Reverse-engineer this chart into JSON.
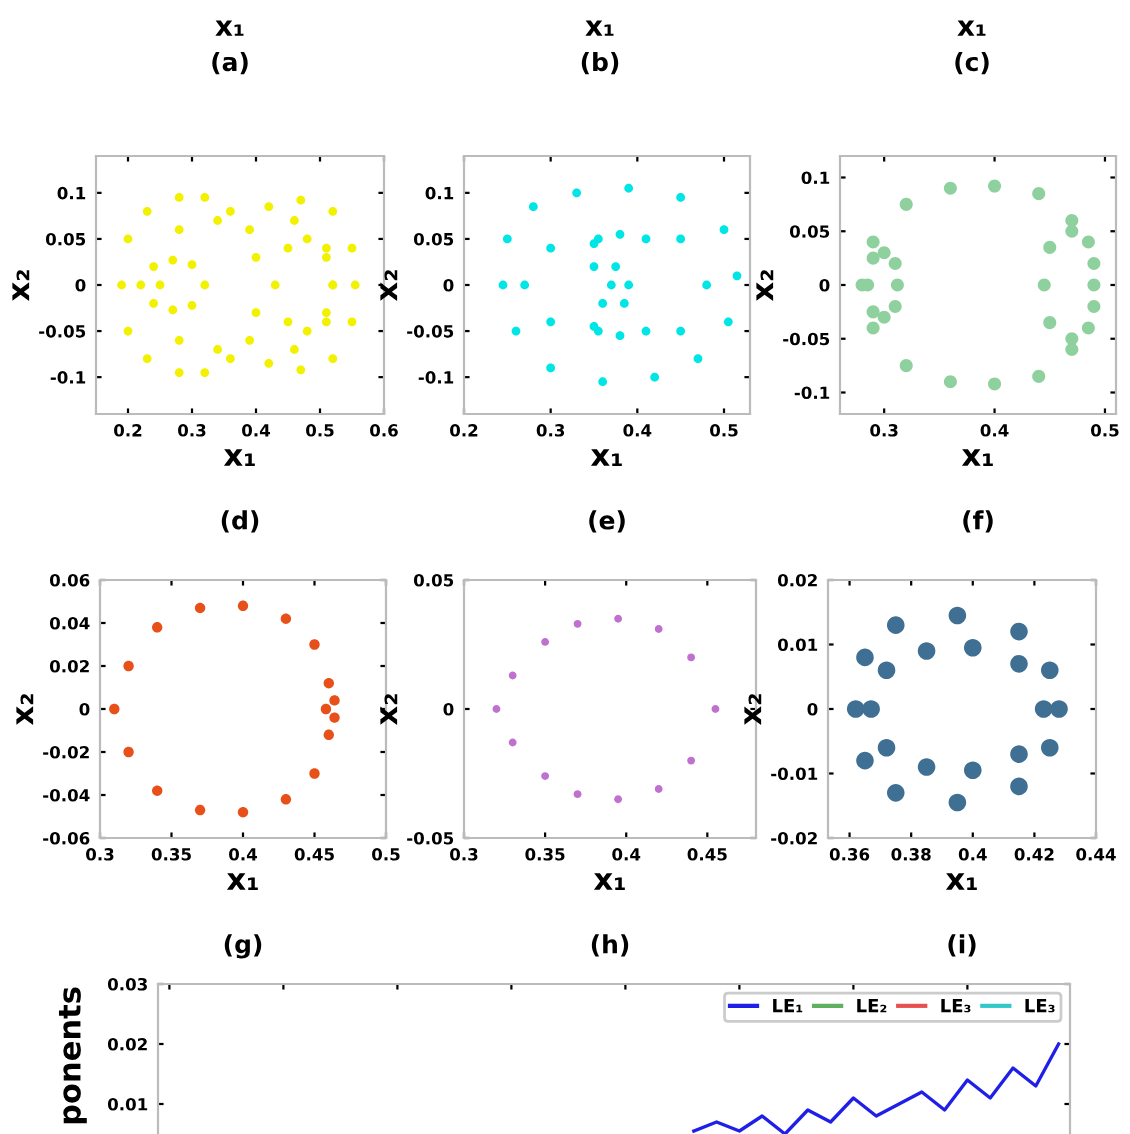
{
  "chart_data": [
    {
      "type": "other",
      "annotations": [
        "x₁",
        "(a)",
        "x₁",
        "(b)",
        "x₁",
        "(c)"
      ]
    },
    {
      "type": "scatter",
      "xlabel": "x₁",
      "ylabel": "x₂",
      "annotations": [
        "(d)"
      ],
      "xlim": [
        0.15,
        0.6
      ],
      "xticks": [
        0.2,
        0.3,
        0.4,
        0.5,
        0.6
      ],
      "ylim": [
        -0.14,
        0.14
      ],
      "yticks": [
        -0.1,
        -0.05,
        0,
        0.05,
        0.1
      ],
      "marker": "circle",
      "grid": false,
      "legend": false,
      "series": [
        {
          "color": "#f2f200",
          "x": [
            0.19,
            0.2,
            0.23,
            0.28,
            0.32,
            0.36,
            0.39,
            0.42,
            0.47,
            0.52,
            0.55,
            0.555,
            0.55,
            0.52,
            0.47,
            0.42,
            0.39,
            0.36,
            0.32,
            0.28,
            0.23,
            0.2
          ],
          "values": [
            0,
            0.05,
            0.08,
            0.095,
            0.095,
            0.08,
            0.06,
            0.085,
            0.092,
            0.08,
            0.04,
            0,
            -0.04,
            -0.08,
            -0.092,
            -0.085,
            -0.06,
            -0.08,
            -0.095,
            -0.095,
            -0.08,
            -0.05
          ]
        },
        {
          "color": "#f2f200",
          "x": [
            0.22,
            0.24,
            0.27,
            0.3,
            0.32,
            0.3,
            0.27,
            0.24
          ],
          "values": [
            0,
            0.02,
            0.027,
            0.022,
            0,
            -0.022,
            -0.027,
            -0.02
          ]
        },
        {
          "color": "#f2f200",
          "x": [
            0.25,
            0.28,
            0.34,
            0.4,
            0.46,
            0.51,
            0.52,
            0.51,
            0.46,
            0.4,
            0.34,
            0.28
          ],
          "values": [
            0,
            0.06,
            0.07,
            0.03,
            0.07,
            0.04,
            0,
            -0.04,
            -0.07,
            -0.03,
            -0.07,
            -0.06
          ]
        },
        {
          "color": "#f2f200",
          "x": [
            0.43,
            0.45,
            0.48,
            0.51,
            0.52,
            0.51,
            0.48,
            0.45
          ],
          "values": [
            0,
            0.04,
            0.05,
            0.03,
            0,
            -0.03,
            -0.05,
            -0.04
          ]
        }
      ]
    },
    {
      "type": "scatter",
      "xlabel": "x₁",
      "ylabel": "x₂",
      "annotations": [
        "(e)"
      ],
      "xlim": [
        0.2,
        0.53
      ],
      "xticks": [
        0.2,
        0.3,
        0.4,
        0.5
      ],
      "ylim": [
        -0.14,
        0.14
      ],
      "yticks": [
        -0.1,
        -0.05,
        0,
        0.05,
        0.1
      ],
      "marker": "circle",
      "grid": false,
      "legend": false,
      "series": [
        {
          "color": "#00e5e5",
          "x": [
            0.245,
            0.25,
            0.28,
            0.33,
            0.39,
            0.45,
            0.5,
            0.515,
            0.505,
            0.47,
            0.42,
            0.36,
            0.3,
            0.26
          ],
          "values": [
            0,
            0.05,
            0.085,
            0.1,
            0.105,
            0.095,
            0.06,
            0.01,
            -0.04,
            -0.08,
            -0.1,
            -0.105,
            -0.09,
            -0.05
          ]
        },
        {
          "color": "#00e5e5",
          "x": [
            0.355,
            0.38,
            0.375,
            0.385,
            0.38,
            0.355,
            0.36,
            0.35
          ],
          "values": [
            0.05,
            0.055,
            0.02,
            -0.02,
            -0.055,
            -0.05,
            -0.02,
            0.02
          ]
        },
        {
          "color": "#00e5e5",
          "x": [
            0.27,
            0.3,
            0.35,
            0.37,
            0.35,
            0.3
          ],
          "values": [
            0,
            0.04,
            0.045,
            0,
            -0.045,
            -0.04
          ]
        },
        {
          "color": "#00e5e5",
          "x": [
            0.39,
            0.41,
            0.45,
            0.48,
            0.45,
            0.41
          ],
          "values": [
            0,
            0.05,
            0.05,
            0,
            -0.05,
            -0.05
          ]
        }
      ]
    },
    {
      "type": "scatter",
      "xlabel": "x₁",
      "ylabel": "x₂",
      "annotations": [
        "(f)"
      ],
      "xlim": [
        0.26,
        0.51
      ],
      "xticks": [
        0.3,
        0.4,
        0.5
      ],
      "ylim": [
        -0.12,
        0.12
      ],
      "yticks": [
        -0.1,
        -0.05,
        0,
        0.05,
        0.1
      ],
      "marker": "circle",
      "grid": false,
      "legend": false,
      "series": [
        {
          "color": "#8fd19e",
          "x": [
            0.28,
            0.29,
            0.32,
            0.36,
            0.4,
            0.44,
            0.47,
            0.49,
            0.49,
            0.47,
            0.44,
            0.4,
            0.36,
            0.32,
            0.29
          ],
          "values": [
            0,
            0.04,
            0.075,
            0.09,
            0.092,
            0.085,
            0.06,
            0.02,
            -0.02,
            -0.06,
            -0.085,
            -0.092,
            -0.09,
            -0.075,
            -0.04
          ]
        },
        {
          "color": "#8fd19e",
          "x": [
            0.285,
            0.29,
            0.3,
            0.31,
            0.312,
            0.31,
            0.3,
            0.29
          ],
          "values": [
            0,
            0.025,
            0.03,
            0.02,
            0,
            -0.02,
            -0.03,
            -0.025
          ]
        },
        {
          "color": "#8fd19e",
          "x": [
            0.445,
            0.45,
            0.47,
            0.485,
            0.49,
            0.485,
            0.47,
            0.45
          ],
          "values": [
            0,
            0.035,
            0.05,
            0.04,
            0,
            -0.04,
            -0.05,
            -0.035
          ]
        }
      ]
    },
    {
      "type": "scatter",
      "xlabel": "x₁",
      "ylabel": "x₂",
      "annotations": [
        "(g)"
      ],
      "xlim": [
        0.3,
        0.5
      ],
      "xticks": [
        0.3,
        0.35,
        0.4,
        0.45,
        0.5
      ],
      "ylim": [
        -0.06,
        0.06
      ],
      "yticks": [
        -0.06,
        -0.04,
        -0.02,
        0,
        0.02,
        0.04,
        0.06
      ],
      "marker": "circle",
      "grid": false,
      "legend": false,
      "series": [
        {
          "color": "#e8501a",
          "x": [
            0.31,
            0.32,
            0.34,
            0.37,
            0.4,
            0.43,
            0.45,
            0.46,
            0.46,
            0.45,
            0.43,
            0.4,
            0.37,
            0.34,
            0.32
          ],
          "values": [
            0,
            0.02,
            0.038,
            0.047,
            0.048,
            0.042,
            0.03,
            0.012,
            -0.012,
            -0.03,
            -0.042,
            -0.048,
            -0.047,
            -0.038,
            -0.02
          ]
        },
        {
          "color": "#e8501a",
          "x": [
            0.458,
            0.464,
            0.464
          ],
          "values": [
            0,
            0.004,
            -0.004
          ]
        }
      ]
    },
    {
      "type": "scatter",
      "xlabel": "x₁",
      "ylabel": "x₂",
      "annotations": [
        "(h)"
      ],
      "xlim": [
        0.3,
        0.48
      ],
      "xticks": [
        0.3,
        0.35,
        0.4,
        0.45
      ],
      "ylim": [
        -0.05,
        0.05
      ],
      "yticks": [
        -0.05,
        0,
        0.05
      ],
      "marker": "circle",
      "grid": false,
      "legend": false,
      "series": [
        {
          "color": "#c071d0",
          "x": [
            0.32,
            0.33,
            0.35,
            0.37,
            0.395,
            0.42,
            0.44,
            0.455,
            0.44,
            0.42,
            0.395,
            0.37,
            0.35,
            0.33
          ],
          "values": [
            0,
            0.013,
            0.026,
            0.033,
            0.035,
            0.031,
            0.02,
            0,
            -0.02,
            -0.031,
            -0.035,
            -0.033,
            -0.026,
            -0.013
          ]
        }
      ]
    },
    {
      "type": "scatter",
      "xlabel": "x₁",
      "ylabel": "x₂",
      "annotations": [
        "(i)"
      ],
      "xlim": [
        0.353,
        0.44
      ],
      "xticks": [
        0.36,
        0.38,
        0.4,
        0.42,
        0.44
      ],
      "ylim": [
        -0.02,
        0.02
      ],
      "yticks": [
        -0.02,
        -0.01,
        0,
        0.01,
        0.02
      ],
      "marker": "circle",
      "grid": false,
      "legend": false,
      "series": [
        {
          "color": "#3f6f92",
          "x": [
            0.362,
            0.365,
            0.375,
            0.395,
            0.415,
            0.425,
            0.428,
            0.425,
            0.415,
            0.395,
            0.375,
            0.365
          ],
          "values": [
            0,
            0.008,
            0.013,
            0.0145,
            0.012,
            0.006,
            0,
            -0.006,
            -0.012,
            -0.0145,
            -0.013,
            -0.008
          ]
        },
        {
          "color": "#3f6f92",
          "x": [
            0.367,
            0.372,
            0.385,
            0.4,
            0.415,
            0.423,
            0.415,
            0.4,
            0.385,
            0.372
          ],
          "values": [
            0,
            0.006,
            0.009,
            0.0095,
            0.007,
            0,
            -0.007,
            -0.0095,
            -0.009,
            -0.006
          ]
        }
      ]
    },
    {
      "type": "line",
      "ylabel": "ponents",
      "ylim": [
        0.005,
        0.03
      ],
      "yticks": [
        0.01,
        0.02,
        0.03
      ],
      "tick_labels": "y",
      "marker": "none",
      "line_style": "solid",
      "grid": false,
      "legend": "top right",
      "categories": [
        null,
        null,
        null,
        null,
        null,
        null,
        null,
        null,
        null,
        null,
        null,
        null,
        null,
        null,
        null,
        null,
        null,
        null,
        null,
        null,
        null,
        null,
        null,
        null,
        null,
        null,
        null,
        null,
        null,
        null,
        null,
        null,
        null,
        null,
        null,
        null,
        null,
        null,
        null,
        null
      ],
      "series": [
        {
          "name": "LE₁",
          "color": "#1f1fe8",
          "values": [
            null,
            null,
            null,
            null,
            null,
            null,
            null,
            null,
            null,
            null,
            null,
            null,
            null,
            null,
            null,
            null,
            null,
            null,
            null,
            null,
            null,
            null,
            null,
            0.0055,
            0.007,
            0.0055,
            0.008,
            0.005,
            0.009,
            0.007,
            0.011,
            0.008,
            0.01,
            0.012,
            0.009,
            0.014,
            0.011,
            0.016,
            0.013,
            0.02
          ]
        },
        {
          "name": "LE₂",
          "color": "#5fb05f",
          "values": [
            null,
            null,
            null,
            null,
            null,
            null,
            null,
            null,
            null,
            null,
            null,
            null,
            null,
            null,
            null,
            null,
            null,
            null,
            null,
            null,
            null,
            null,
            null,
            null,
            null,
            null,
            null,
            null,
            null,
            null,
            null,
            null,
            null,
            null,
            null,
            null,
            null,
            null,
            null,
            null
          ]
        },
        {
          "name": "LE₃",
          "color": "#e85050",
          "values": [
            null,
            null,
            null,
            null,
            null,
            null,
            null,
            null,
            null,
            null,
            null,
            null,
            null,
            null,
            null,
            null,
            null,
            null,
            null,
            null,
            null,
            null,
            null,
            null,
            null,
            null,
            null,
            null,
            null,
            null,
            null,
            null,
            null,
            null,
            null,
            null,
            null,
            null,
            null,
            null
          ]
        },
        {
          "name": "LE₃",
          "color": "#30c8c8",
          "values": [
            null,
            null,
            null,
            null,
            null,
            null,
            null,
            null,
            null,
            null,
            null,
            null,
            null,
            null,
            null,
            null,
            null,
            null,
            null,
            null,
            null,
            null,
            null,
            null,
            null,
            null,
            null,
            null,
            null,
            null,
            null,
            null,
            null,
            null,
            null,
            null,
            null,
            null,
            null,
            null
          ]
        }
      ]
    }
  ]
}
